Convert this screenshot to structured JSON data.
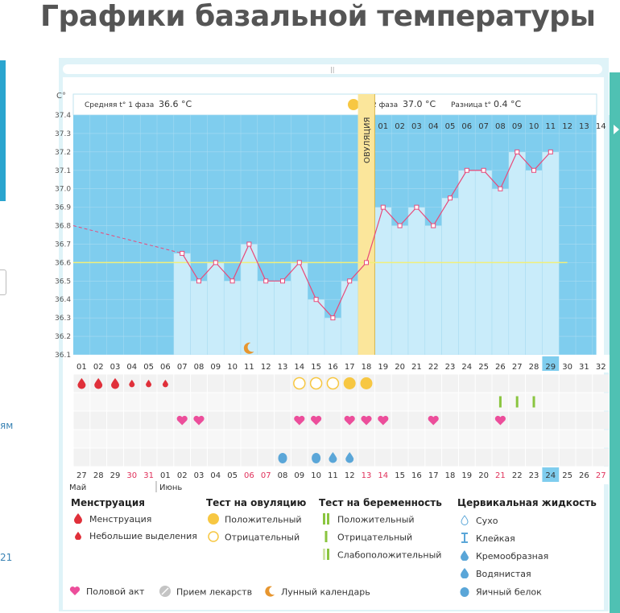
{
  "page_title": "Графики базальной температуры",
  "left_partial": {
    "text1": "ям",
    "text2": "21"
  },
  "header": {
    "unit": "C°",
    "phase1_label": "Средняя t° 1 фаза",
    "phase1_value": "36.6 °C",
    "phase2_label": "2 фаза",
    "phase2_value": "37.0 °C",
    "diff_label": "Разница t°",
    "diff_value": "0.4 °C",
    "ovulation_label": "ОВУЛЯЦИЯ",
    "luteal_days": [
      "01",
      "02",
      "03",
      "04",
      "05",
      "06",
      "07",
      "08",
      "09",
      "10",
      "11",
      "12",
      "13",
      "14"
    ]
  },
  "cycle_days": [
    "01",
    "02",
    "03",
    "04",
    "05",
    "06",
    "07",
    "08",
    "09",
    "10",
    "11",
    "12",
    "13",
    "14",
    "15",
    "16",
    "17",
    "18",
    "19",
    "20",
    "21",
    "22",
    "23",
    "24",
    "25",
    "26",
    "27",
    "28",
    "29",
    "30",
    "31",
    "32"
  ],
  "current_cycle_day": "29",
  "dates": [
    "27",
    "28",
    "29",
    "30",
    "31",
    "01",
    "02",
    "03",
    "04",
    "05",
    "06",
    "07",
    "08",
    "09",
    "10",
    "11",
    "12",
    "13",
    "14",
    "15",
    "16",
    "17",
    "18",
    "19",
    "20",
    "21",
    "22",
    "23",
    "24",
    "25",
    "26",
    "27"
  ],
  "date_weekend": [
    false,
    false,
    false,
    true,
    true,
    false,
    false,
    false,
    false,
    false,
    true,
    true,
    false,
    false,
    false,
    false,
    false,
    true,
    true,
    false,
    false,
    false,
    false,
    false,
    false,
    true,
    false,
    false,
    false,
    false,
    false,
    true
  ],
  "current_date": "24",
  "month_labels": {
    "prev": "Май",
    "next": "Июнь"
  },
  "colors": {
    "chart_bg": "#7fcdee",
    "bar": "#c9ecfa",
    "line": "#e84a7a",
    "ovulation": "#fbe69b",
    "accent": "#4fc1b3"
  },
  "chart_data": {
    "type": "line",
    "title": "",
    "xlabel": "",
    "ylabel": "C°",
    "ylim": [
      36.1,
      37.4
    ],
    "y_ticks": [
      "37.4",
      "37.3",
      "37.2",
      "37.1",
      "37.0",
      "36.9",
      "36.8",
      "36.7",
      "36.6",
      "36.5",
      "36.4",
      "36.3",
      "36.2",
      "36.1"
    ],
    "series": [
      {
        "x": [
          7,
          8,
          9,
          10,
          11,
          12,
          13,
          14,
          15,
          16,
          17,
          18,
          19,
          20,
          21,
          22,
          23,
          24,
          25,
          26,
          27,
          28,
          29
        ],
        "values": [
          36.65,
          36.5,
          36.6,
          36.5,
          36.7,
          36.5,
          36.5,
          36.6,
          36.4,
          36.3,
          36.5,
          36.6,
          36.9,
          36.8,
          36.9,
          36.8,
          36.95,
          37.1,
          37.1,
          37.0,
          37.2,
          37.1,
          37.2
        ]
      }
    ],
    "dashed_from": {
      "x": 1,
      "value": 36.8
    },
    "coverline": 36.6,
    "ovulation_day": 18,
    "moon_day": 11
  },
  "markers": {
    "menstruation_heavy_days": [
      1,
      2,
      3
    ],
    "menstruation_light_days": [
      4,
      5,
      6
    ],
    "ovulation_test_negative_days": [
      14,
      15,
      16
    ],
    "ovulation_test_positive_days": [
      17,
      18
    ],
    "pregnancy_test_negative_days": [
      26,
      27,
      28
    ],
    "intercourse_days": [
      7,
      8,
      14,
      15,
      17,
      18,
      19,
      22,
      26
    ],
    "cervical_watery_days": [
      16,
      17
    ],
    "cervical_eggwhite_days": [
      13,
      15
    ]
  },
  "legend": {
    "groups": [
      {
        "title": "Менструация",
        "items": [
          "Менструация",
          "Небольшие выделения"
        ]
      },
      {
        "title": "Тест на овуляцию",
        "items": [
          "Положительный",
          "Отрицательный"
        ]
      },
      {
        "title": "Тест на беременность",
        "items": [
          "Положительный",
          "Отрицательный",
          "Слабоположительный"
        ]
      },
      {
        "title": "Цервикальная жидкость",
        "items": [
          "Сухо",
          "Клейкая",
          "Кремообразная",
          "Водянистая",
          "Яичный белок"
        ]
      }
    ],
    "bottom_items": [
      "Половой акт",
      "Прием лекарств",
      "Лунный календарь"
    ]
  }
}
